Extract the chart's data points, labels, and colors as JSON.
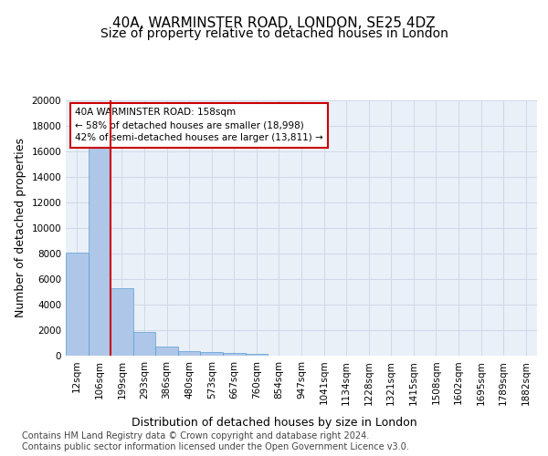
{
  "title_line1": "40A, WARMINSTER ROAD, LONDON, SE25 4DZ",
  "title_line2": "Size of property relative to detached houses in London",
  "xlabel": "Distribution of detached houses by size in London",
  "ylabel": "Number of detached properties",
  "categories": [
    "12sqm",
    "106sqm",
    "199sqm",
    "293sqm",
    "386sqm",
    "480sqm",
    "573sqm",
    "667sqm",
    "760sqm",
    "854sqm",
    "947sqm",
    "1041sqm",
    "1134sqm",
    "1228sqm",
    "1321sqm",
    "1415sqm",
    "1508sqm",
    "1602sqm",
    "1695sqm",
    "1789sqm",
    "1882sqm"
  ],
  "values": [
    8100,
    16500,
    5300,
    1850,
    750,
    340,
    270,
    195,
    170,
    0,
    0,
    0,
    0,
    0,
    0,
    0,
    0,
    0,
    0,
    0,
    0
  ],
  "bar_color": "#aec6e8",
  "bar_edge_color": "#5a9fd4",
  "vline_color": "#cc0000",
  "annotation_text": "40A WARMINSTER ROAD: 158sqm\n← 58% of detached houses are smaller (18,998)\n42% of semi-detached houses are larger (13,811) →",
  "annotation_box_color": "#ffffff",
  "annotation_box_edge_color": "#cc0000",
  "ylim": [
    0,
    20000
  ],
  "yticks": [
    0,
    2000,
    4000,
    6000,
    8000,
    10000,
    12000,
    14000,
    16000,
    18000,
    20000
  ],
  "grid_color": "#d0d8e8",
  "background_color": "#eaf0f8",
  "footer_text": "Contains HM Land Registry data © Crown copyright and database right 2024.\nContains public sector information licensed under the Open Government Licence v3.0.",
  "title_fontsize": 11,
  "subtitle_fontsize": 10,
  "axis_label_fontsize": 9,
  "tick_fontsize": 7.5,
  "footer_fontsize": 7.0
}
